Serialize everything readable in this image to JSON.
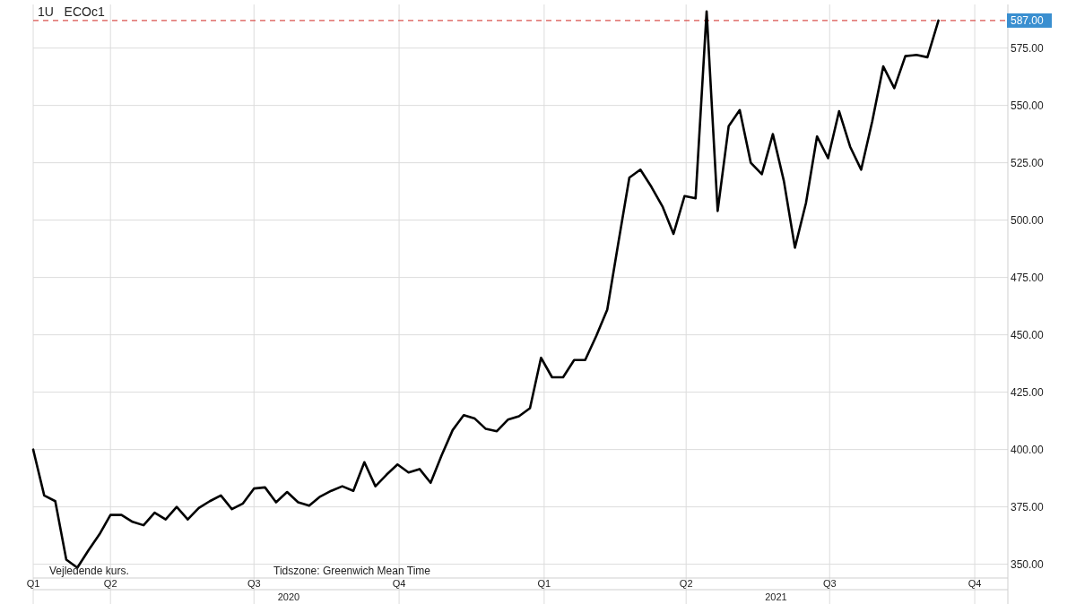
{
  "chart_data": {
    "type": "line",
    "title": "1U   ECOc1",
    "annotations": [
      "Vejledende kurs.",
      "Tidszone: Greenwich Mean Time",
      "2020",
      "2021"
    ],
    "x": [
      "2020-02-12",
      "2020-02-19",
      "2020-02-26",
      "2020-03-04",
      "2020-03-11",
      "2020-03-18",
      "2020-03-25",
      "2020-04-01",
      "2020-04-08",
      "2020-04-15",
      "2020-04-22",
      "2020-04-29",
      "2020-05-06",
      "2020-05-13",
      "2020-05-20",
      "2020-05-27",
      "2020-06-03",
      "2020-06-10",
      "2020-06-17",
      "2020-06-24",
      "2020-07-01",
      "2020-07-08",
      "2020-07-15",
      "2020-07-22",
      "2020-07-29",
      "2020-08-05",
      "2020-08-12",
      "2020-08-19",
      "2020-08-26",
      "2020-09-02",
      "2020-09-09",
      "2020-09-16",
      "2020-09-23",
      "2020-09-30",
      "2020-10-07",
      "2020-10-14",
      "2020-10-21",
      "2020-10-28",
      "2020-11-04",
      "2020-11-11",
      "2020-11-18",
      "2020-11-25",
      "2020-12-02",
      "2020-12-09",
      "2020-12-16",
      "2020-12-23",
      "2020-12-30",
      "2021-01-06",
      "2021-01-13",
      "2021-01-20",
      "2021-01-27",
      "2021-02-03",
      "2021-02-10",
      "2021-02-17",
      "2021-02-24",
      "2021-03-03",
      "2021-03-10",
      "2021-03-17",
      "2021-03-24",
      "2021-03-31",
      "2021-04-07",
      "2021-04-14",
      "2021-04-21",
      "2021-04-28",
      "2021-05-05",
      "2021-05-12",
      "2021-05-19",
      "2021-05-26",
      "2021-06-02",
      "2021-06-09",
      "2021-06-16",
      "2021-06-23",
      "2021-06-30",
      "2021-07-07",
      "2021-07-14",
      "2021-07-21",
      "2021-07-28",
      "2021-08-04",
      "2021-08-11",
      "2021-08-18",
      "2021-08-25",
      "2021-09-01",
      "2021-09-08"
    ],
    "series": [
      {
        "color": "#000000",
        "values": [
          400,
          380,
          377.5,
          352,
          348.5,
          356,
          363,
          371.5,
          371.5,
          368.5,
          367,
          372.5,
          369.5,
          375,
          369.5,
          374.5,
          377.5,
          380,
          374,
          376.5,
          383,
          383.5,
          377,
          381.5,
          377,
          375.5,
          379.5,
          382,
          384,
          382,
          394.5,
          384,
          389,
          393.5,
          390,
          391.5,
          385.5,
          397.5,
          408.5,
          415,
          413.5,
          409,
          408,
          413,
          414.5,
          418,
          440,
          431.5,
          431.5,
          439,
          439,
          449.5,
          461,
          490,
          518.5,
          522,
          514.5,
          506,
          494,
          510.5,
          509.5,
          591,
          504,
          541,
          548,
          525,
          520,
          537.5,
          517,
          488,
          507.5,
          536.5,
          527,
          547.5,
          532,
          522,
          543,
          567,
          557.5,
          571.5,
          572,
          571,
          587
        ]
      }
    ],
    "xlim": [
      "2020-02-12",
      "2021-10-22"
    ],
    "xticks": [
      {
        "value": "2020-02-12",
        "label": "Q1"
      },
      {
        "value": "2020-04-01",
        "label": "Q2"
      },
      {
        "value": "2020-07-01",
        "label": "Q3"
      },
      {
        "value": "2020-10-01",
        "label": "Q4"
      },
      {
        "value": "2021-01-01",
        "label": "Q1"
      },
      {
        "value": "2021-04-01",
        "label": "Q2"
      },
      {
        "value": "2021-07-01",
        "label": "Q3"
      },
      {
        "value": "2021-10-01",
        "label": "Q4"
      }
    ],
    "ylim": [
      344,
      594
    ],
    "yticks": [
      {
        "value": 350,
        "label": "350.00"
      },
      {
        "value": 375,
        "label": "375.00"
      },
      {
        "value": 400,
        "label": "400.00"
      },
      {
        "value": 425,
        "label": "425.00"
      },
      {
        "value": 450,
        "label": "450.00"
      },
      {
        "value": 475,
        "label": "475.00"
      },
      {
        "value": 500,
        "label": "500.00"
      },
      {
        "value": 525,
        "label": "525.00"
      },
      {
        "value": 550,
        "label": "550.00"
      },
      {
        "value": 575,
        "label": "575.00"
      }
    ],
    "ref_lines": [
      {
        "axis": "y",
        "value": 587,
        "label": "587.00",
        "color": "#d9534f",
        "line_style": "dashed"
      }
    ],
    "grid": true,
    "marker": "none",
    "line_style": "solid"
  }
}
